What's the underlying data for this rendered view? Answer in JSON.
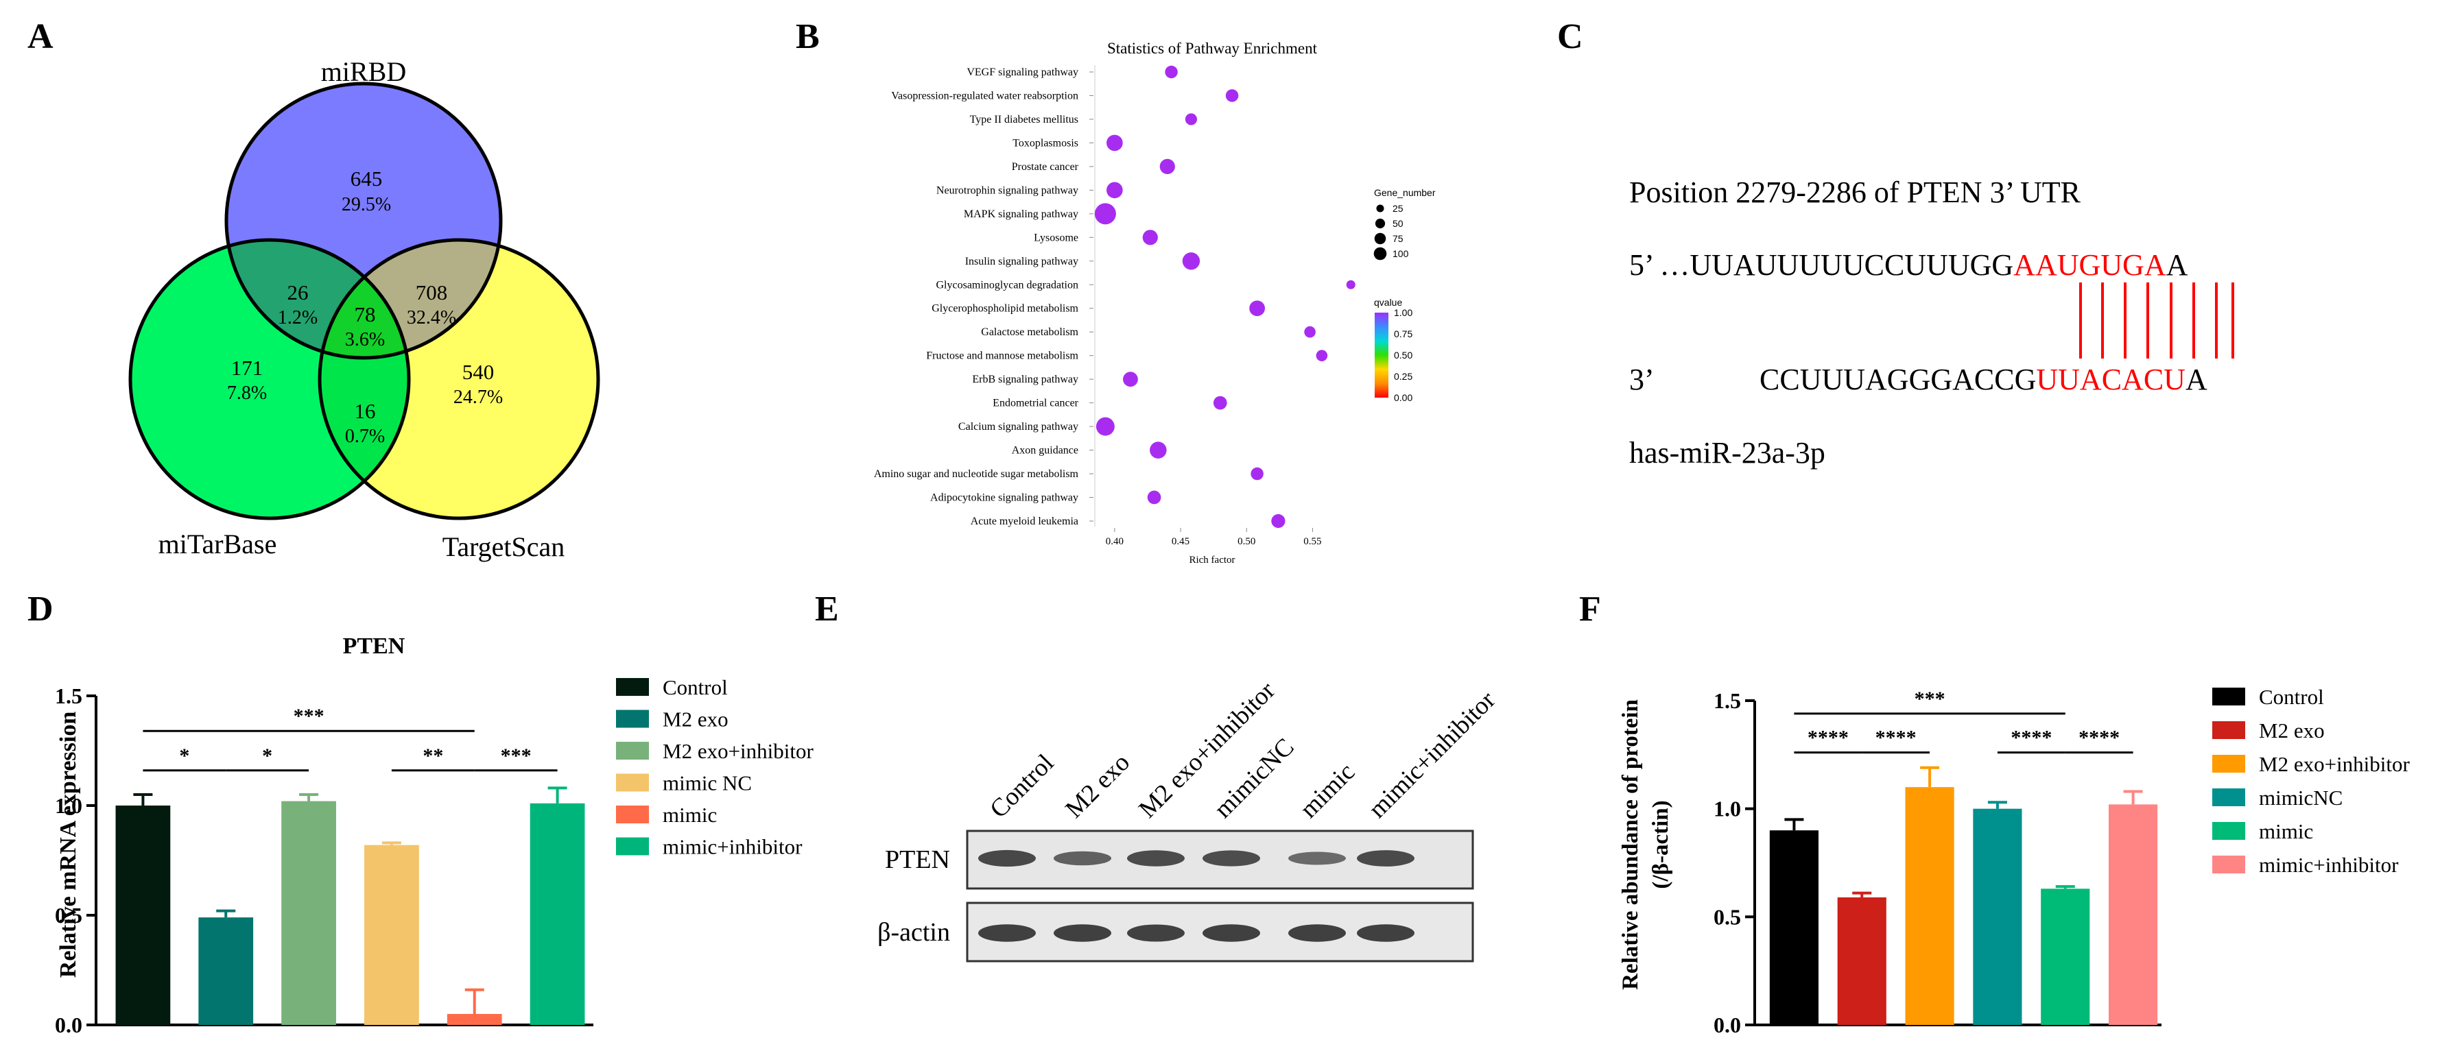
{
  "panel_labels": [
    "A",
    "B",
    "C",
    "D",
    "E",
    "F"
  ],
  "chart_data": [
    {
      "panel": "A",
      "type": "venn",
      "sets": [
        "miRBD",
        "miTarBase",
        "TargetScan"
      ],
      "colors": {
        "miRBD": "#7b7bff",
        "miTarBase": "#00f564",
        "TargetScan": "#ffff63"
      },
      "regions": [
        {
          "id": "miRBD_only",
          "count": "645",
          "percent": "29.5%"
        },
        {
          "id": "miRBD_miTarBase",
          "count": "26",
          "percent": "1.2%"
        },
        {
          "id": "miRBD_TargetScan",
          "count": "708",
          "percent": "32.4%"
        },
        {
          "id": "all_three",
          "count": "78",
          "percent": "3.6%"
        },
        {
          "id": "miTarBase_only",
          "count": "171",
          "percent": "7.8%"
        },
        {
          "id": "TargetScan_only",
          "count": "540",
          "percent": "24.7%"
        },
        {
          "id": "miTarBase_TargetScan",
          "count": "16",
          "percent": "0.7%"
        }
      ]
    },
    {
      "panel": "B",
      "type": "scatter",
      "title": "Statistics of Pathway Enrichment",
      "xlabel": "Rich factor",
      "xlim": [
        0.385,
        0.582
      ],
      "xticks": [
        0.4,
        0.45,
        0.5,
        0.55
      ],
      "xtick_labels": [
        "0.40",
        "0.45",
        "0.50",
        "0.55"
      ],
      "pathways": [
        {
          "name": "VEGF signaling pathway",
          "rich": 0.443,
          "genes": 25,
          "q": 0.98
        },
        {
          "name": "Vasopression-regulated water reabsorption",
          "rich": 0.489,
          "genes": 25,
          "q": 0.98
        },
        {
          "name": "Type II diabetes mellitus",
          "rich": 0.458,
          "genes": 20,
          "q": 0.98
        },
        {
          "name": "Toxoplasmosis",
          "rich": 0.4,
          "genes": 50,
          "q": 0.98
        },
        {
          "name": "Prostate cancer",
          "rich": 0.44,
          "genes": 42,
          "q": 0.98
        },
        {
          "name": "Neurotrophin signaling pathway",
          "rich": 0.4,
          "genes": 50,
          "q": 0.98
        },
        {
          "name": "MAPK signaling pathway",
          "rich": 0.393,
          "genes": 100,
          "q": 0.98
        },
        {
          "name": "Lysosome",
          "rich": 0.427,
          "genes": 42,
          "q": 0.98
        },
        {
          "name": "Insulin signaling pathway",
          "rich": 0.458,
          "genes": 60,
          "q": 0.98
        },
        {
          "name": "Glycosaminoglycan degradation",
          "rich": 0.579,
          "genes": 8,
          "q": 0.98
        },
        {
          "name": "Glycerophospholipid metabolism",
          "rich": 0.508,
          "genes": 45,
          "q": 0.98
        },
        {
          "name": "Galactose metabolism",
          "rich": 0.548,
          "genes": 18,
          "q": 0.98
        },
        {
          "name": "Fructose and mannose metabolism",
          "rich": 0.557,
          "genes": 18,
          "q": 0.98
        },
        {
          "name": "ErbB signaling pathway",
          "rich": 0.412,
          "genes": 40,
          "q": 0.98
        },
        {
          "name": "Endometrial cancer",
          "rich": 0.48,
          "genes": 30,
          "q": 0.98
        },
        {
          "name": "Calcium signaling pathway",
          "rich": 0.393,
          "genes": 70,
          "q": 0.98
        },
        {
          "name": "Axon guidance",
          "rich": 0.433,
          "genes": 55,
          "q": 0.98
        },
        {
          "name": "Amino sugar and nucleotide sugar metabolism",
          "rich": 0.508,
          "genes": 25,
          "q": 0.98
        },
        {
          "name": "Adipocytokine signaling pathway",
          "rich": 0.43,
          "genes": 30,
          "q": 0.98
        },
        {
          "name": "Acute myeloid leukemia",
          "rich": 0.524,
          "genes": 32,
          "q": 0.98
        }
      ],
      "size_legend": {
        "title": "Gene_number",
        "values": [
          25,
          50,
          75,
          100
        ],
        "labels": [
          "25",
          "50",
          "75",
          "100"
        ]
      },
      "color_legend": {
        "title": "qvalue",
        "ticks": [
          1.0,
          0.75,
          0.5,
          0.25,
          0.0
        ],
        "labels": [
          "1.00",
          "0.75",
          "0.50",
          "0.25",
          "0.00"
        ],
        "colors": [
          "#ff0000",
          "#ff8c00",
          "#ffd700",
          "#2fe000",
          "#00d8d8",
          "#3b8cff",
          "#9b30ff"
        ]
      }
    },
    {
      "panel": "D",
      "type": "bar",
      "title": "PTEN",
      "ylabel": "Relative mRNA expression",
      "ylim": [
        0,
        1.5
      ],
      "yticks": [
        "0.0",
        "0.5",
        "1.0",
        "1.5"
      ],
      "categories": [
        "Control",
        "M2 exo",
        "M2 exo+inhibitor",
        "mimic NC",
        "mimic",
        "mimic+inhibitor"
      ],
      "values": [
        1.0,
        0.49,
        1.02,
        0.82,
        0.05,
        1.01
      ],
      "errors": [
        0.05,
        0.03,
        0.03,
        0.01,
        0.11,
        0.07
      ],
      "colors": [
        "#031b0f",
        "#01756e",
        "#78b27a",
        "#f4c46a",
        "#ff6b49",
        "#00b57a"
      ],
      "significance": [
        {
          "from": 0,
          "to": 4,
          "level": 1.34,
          "label": "***"
        },
        {
          "from": 0,
          "to": 1,
          "level": 1.16,
          "label": "*"
        },
        {
          "from": 1,
          "to": 2,
          "level": 1.16,
          "label": "*"
        },
        {
          "from": 3,
          "to": 4,
          "level": 1.16,
          "label": "**"
        },
        {
          "from": 4,
          "to": 5,
          "level": 1.16,
          "label": "***"
        }
      ]
    },
    {
      "panel": "F",
      "type": "bar",
      "ylabel": "Relative abundance of  protein",
      "ylabel2": "(/β-actin)",
      "ylim": [
        0,
        1.5
      ],
      "yticks": [
        "0.0",
        "0.5",
        "1.0",
        "1.5"
      ],
      "categories": [
        "Control",
        "M2 exo",
        "M2 exo+inhibitor",
        "mimicNC",
        "mimic",
        "mimic+inhibitor"
      ],
      "values": [
        0.9,
        0.59,
        1.1,
        1.0,
        0.63,
        1.02
      ],
      "errors": [
        0.05,
        0.02,
        0.09,
        0.03,
        0.01,
        0.06
      ],
      "colors": [
        "#000000",
        "#cc2018",
        "#ff9b00",
        "#00908e",
        "#00ba78",
        "#ff8585"
      ],
      "significance": [
        {
          "from": 0,
          "to": 4,
          "level": 1.44,
          "label": "***"
        },
        {
          "from": 0,
          "to": 1,
          "level": 1.26,
          "label": "****"
        },
        {
          "from": 1,
          "to": 2,
          "level": 1.26,
          "label": "****"
        },
        {
          "from": 3,
          "to": 4,
          "level": 1.26,
          "label": "****"
        },
        {
          "from": 4,
          "to": 5,
          "level": 1.26,
          "label": "****"
        }
      ]
    }
  ],
  "panel_C": {
    "position": "Position 2279-2286 of PTEN 3’ UTR",
    "seq5_prefix": "5’ …UUAUUUUUCCUUUGG",
    "seq5_seed": "AAUGUGA",
    "seq5_suffix": "A",
    "seq3_label": "3’",
    "seq3_prefix": "CCUUUAGGGACCG",
    "seq3_seed": "UUACACU",
    "seq3_suffix": "A",
    "mirna": "has-miR-23a-3p",
    "seed_color": "#ff0000"
  },
  "panel_E": {
    "lanes": [
      "Control",
      "M2 exo",
      "M2 exo+inhibitor",
      "mimicNC",
      "mimic",
      "mimic+inhibitor"
    ],
    "rows": [
      {
        "label": "PTEN",
        "intensities": [
          0.85,
          0.55,
          0.8,
          0.78,
          0.42,
          0.82
        ]
      },
      {
        "label": "β-actin",
        "intensities": [
          0.95,
          0.95,
          0.92,
          0.95,
          0.95,
          0.95
        ]
      }
    ]
  }
}
